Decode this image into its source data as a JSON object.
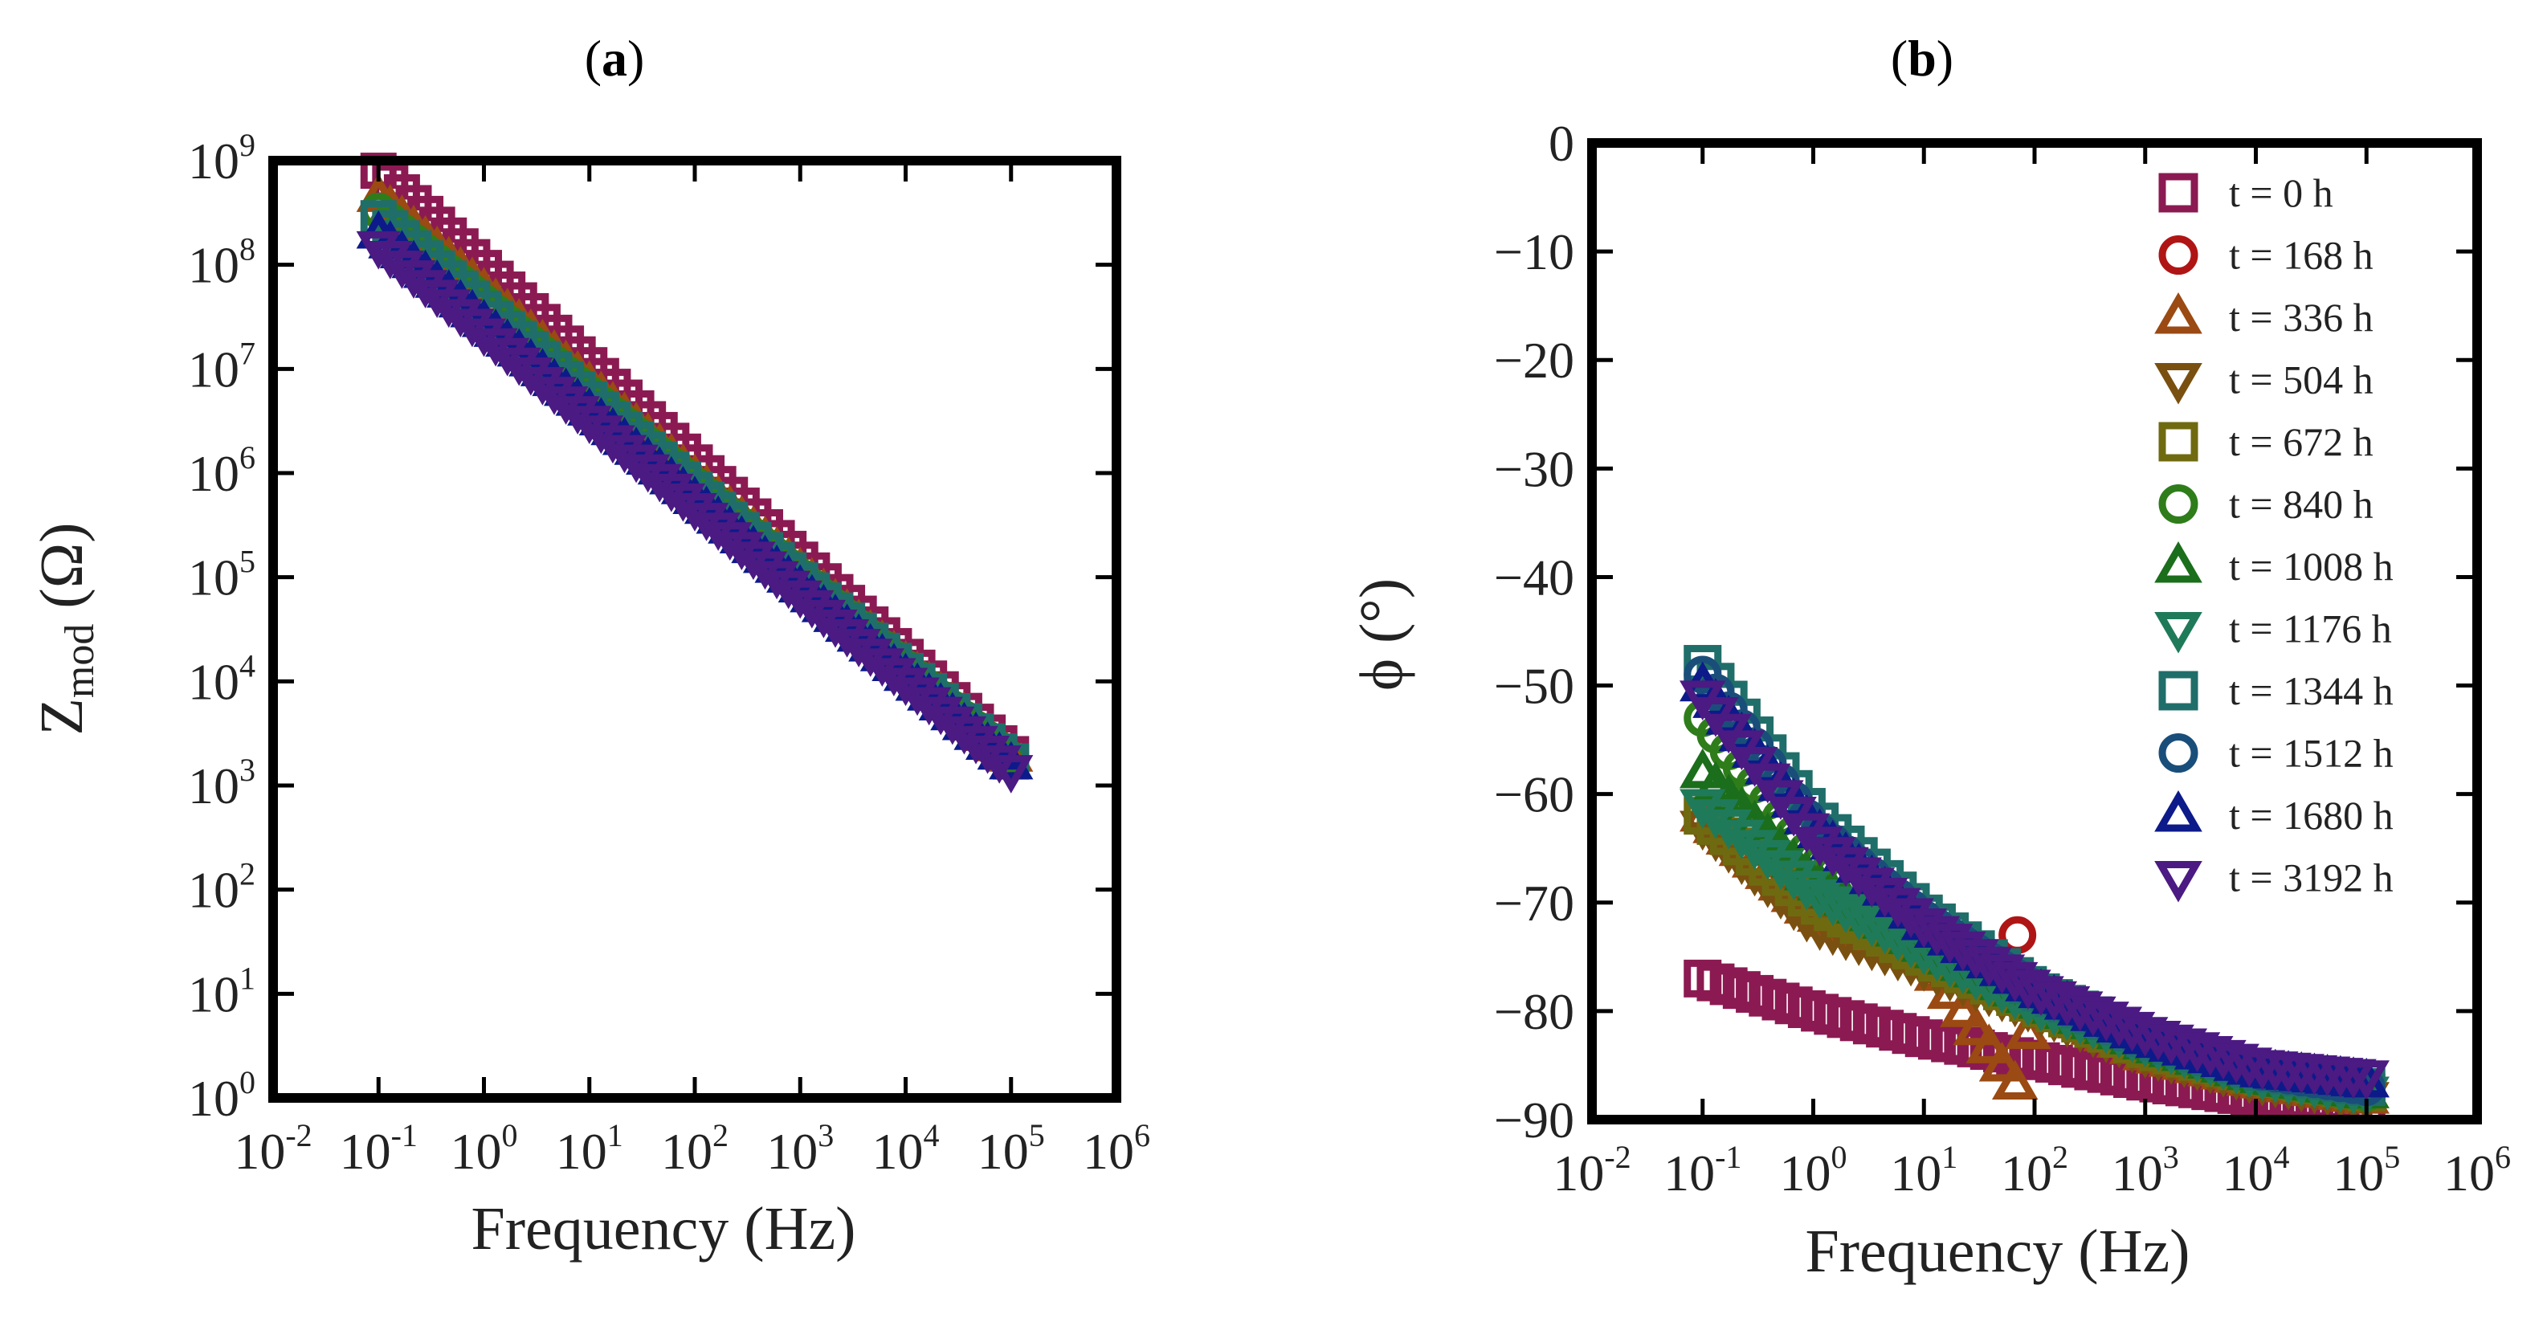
{
  "panels": [
    {
      "label": "(a)",
      "label_letter": "a"
    },
    {
      "label": "(b)",
      "label_letter": "b"
    }
  ],
  "chart_data": [
    {
      "type": "scatter",
      "xlabel": "Frequency (Hz)",
      "ylabel": "Z",
      "ylabel_sub": "mod",
      "ylabel_unit": " (Ω)",
      "x_scale": "log",
      "y_scale": "log",
      "xlim": [
        0.01,
        1000000
      ],
      "ylim": [
        1,
        1000000000
      ],
      "x_ticks": [
        "10-2",
        "10-1",
        "100",
        "101",
        "102",
        "103",
        "104",
        "105",
        "106"
      ],
      "y_ticks": [
        "100",
        "101",
        "102",
        "103",
        "104",
        "105",
        "106",
        "107",
        "108",
        "109"
      ],
      "note": "",
      "series": [
        {
          "name": "t = 0 h",
          "marker": "square",
          "color": "#8b1a52",
          "x": [
            0.1,
            100000
          ],
          "y": [
            800000000,
            2000
          ]
        },
        {
          "name": "t = 336 h",
          "marker": "triangle-up",
          "color": "#9a4a12",
          "x": [
            0.1,
            100000
          ],
          "y": [
            450000000,
            1900
          ]
        },
        {
          "name": "t = 840 h",
          "marker": "circle",
          "color": "#2e7d1a",
          "x": [
            0.1,
            100000
          ],
          "y": [
            330000000,
            1800
          ]
        },
        {
          "name": "t = 1344 h",
          "marker": "square",
          "color": "#1f6e6a",
          "x": [
            0.1,
            100000
          ],
          "y": [
            280000000,
            1700
          ]
        },
        {
          "name": "t = 1680 h",
          "marker": "triangle-up",
          "color": "#0d1a8a",
          "x": [
            0.1,
            100000
          ],
          "y": [
            200000000,
            1600
          ]
        },
        {
          "name": "t = 3192 h",
          "marker": "triangle-down",
          "color": "#4b1a82",
          "x": [
            0.1,
            100000
          ],
          "y": [
            150000000,
            1400
          ]
        }
      ]
    },
    {
      "type": "scatter",
      "xlabel": "Frequency (Hz)",
      "ylabel": "ϕ (°)",
      "x_scale": "log",
      "y_scale": "linear",
      "xlim": [
        0.01,
        1000000
      ],
      "ylim": [
        -90,
        0
      ],
      "x_ticks": [
        "10-2",
        "10-1",
        "100",
        "101",
        "102",
        "103",
        "104",
        "105",
        "106"
      ],
      "y_ticks": [
        "0",
        "−10",
        "−20",
        "−30",
        "−40",
        "−50",
        "−60",
        "−70",
        "−80",
        "−90"
      ],
      "legend": "top-right",
      "series": [
        {
          "name": "t = 0 h",
          "marker": "square",
          "color": "#8b1a52",
          "x": [
            0.1,
            1,
            10,
            100,
            1000,
            10000,
            100000
          ],
          "y": [
            -77,
            -80,
            -82.5,
            -84.5,
            -86.5,
            -88,
            -88.5
          ]
        },
        {
          "name": "t = 168 h",
          "marker": "circle",
          "color": "#b01515",
          "x": [
            70
          ],
          "y": [
            -73
          ]
        },
        {
          "name": "t = 336 h",
          "marker": "triangle-up",
          "color": "#9a4a12",
          "x": [
            0.1,
            1,
            10,
            70,
            100,
            1000,
            10000,
            100000
          ],
          "y": [
            -62,
            -71,
            -75,
            -87,
            -79,
            -84,
            -86.5,
            -88
          ]
        },
        {
          "name": "t = 504 h",
          "marker": "triangle-down",
          "color": "#7a5010",
          "x": [
            0.1,
            1,
            10,
            100,
            1000,
            10000,
            100000
          ],
          "y": [
            -63,
            -72,
            -76,
            -80,
            -84,
            -86.5,
            -88
          ]
        },
        {
          "name": "t = 672 h",
          "marker": "square",
          "color": "#6f6a10",
          "x": [
            0.1,
            1,
            10,
            100,
            1000,
            10000,
            100000
          ],
          "y": [
            -62,
            -70,
            -75,
            -79.5,
            -83.5,
            -86,
            -87.5
          ]
        },
        {
          "name": "t = 840 h",
          "marker": "circle",
          "color": "#2e7d1a",
          "x": [
            0.1,
            1,
            10,
            100,
            1000,
            10000,
            100000
          ],
          "y": [
            -53,
            -66,
            -73,
            -79,
            -83,
            -86,
            -87.5
          ]
        },
        {
          "name": "t = 1008 h",
          "marker": "triangle-up",
          "color": "#1b6e1b",
          "x": [
            0.1,
            1,
            10,
            100,
            1000,
            10000,
            100000
          ],
          "y": [
            -58,
            -68,
            -74,
            -79,
            -83,
            -86,
            -87.5
          ]
        },
        {
          "name": "t = 1176 h",
          "marker": "triangle-down",
          "color": "#1f7a5a",
          "x": [
            0.1,
            1,
            10,
            100,
            1000,
            10000,
            100000
          ],
          "y": [
            -61,
            -69,
            -74.5,
            -79.5,
            -83,
            -86,
            -87.5
          ]
        },
        {
          "name": "t = 1344 h",
          "marker": "square",
          "color": "#1f6e6a",
          "x": [
            0.1,
            1,
            10,
            100,
            1000,
            10000,
            100000
          ],
          "y": [
            -48,
            -62,
            -71,
            -78,
            -82.5,
            -85.5,
            -87
          ]
        },
        {
          "name": "t = 1512 h",
          "marker": "circle",
          "color": "#1a4e7a",
          "x": [
            0.1,
            1,
            10,
            100,
            1000,
            10000,
            100000
          ],
          "y": [
            -49,
            -63,
            -71.5,
            -78,
            -82.5,
            -85.5,
            -87
          ]
        },
        {
          "name": "t = 1680 h",
          "marker": "triangle-up",
          "color": "#0d1a8a",
          "x": [
            0.1,
            1,
            10,
            100,
            1000,
            10000,
            100000
          ],
          "y": [
            -50,
            -63,
            -72,
            -78,
            -82.5,
            -85.5,
            -86.5
          ]
        },
        {
          "name": "t = 3192 h",
          "marker": "triangle-down",
          "color": "#4b1a82",
          "x": [
            0.1,
            1,
            10,
            100,
            1000,
            10000,
            100000
          ],
          "y": [
            -51,
            -64,
            -72,
            -78,
            -82,
            -85,
            -86
          ]
        }
      ]
    }
  ]
}
